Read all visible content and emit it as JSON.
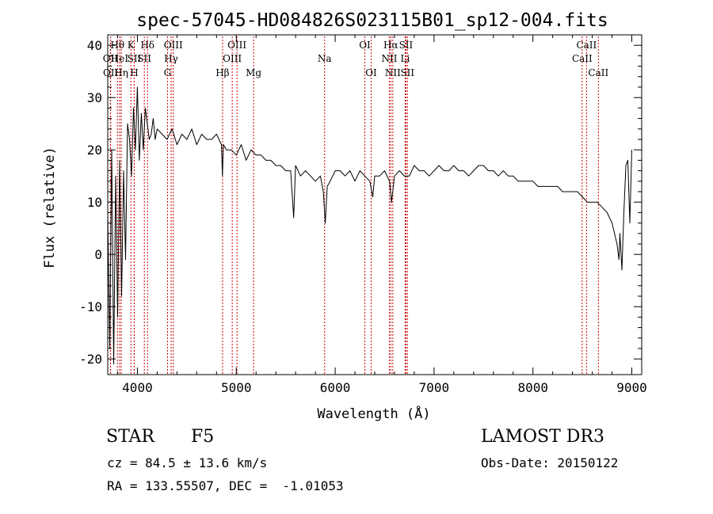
{
  "chart_data": {
    "type": "line",
    "title": "spec-57045-HD084826S023115B01_sp12-004.fits",
    "xlabel": "Wavelength (Å)",
    "ylabel": "Flux (relative)",
    "xlim": [
      3700,
      9100
    ],
    "ylim": [
      -23,
      42
    ],
    "x_ticks": [
      4000,
      5000,
      6000,
      7000,
      8000,
      9000
    ],
    "y_ticks": [
      -20,
      -10,
      0,
      10,
      20,
      30,
      40
    ],
    "grid": false,
    "line_color": "#000000",
    "marker_color": "#cc0000",
    "series": [
      {
        "name": "flux",
        "x": [
          3700,
          3720,
          3740,
          3760,
          3780,
          3800,
          3820,
          3840,
          3860,
          3880,
          3900,
          3920,
          3940,
          3960,
          3980,
          4000,
          4020,
          4040,
          4060,
          4080,
          4100,
          4120,
          4140,
          4160,
          4180,
          4200,
          4250,
          4300,
          4350,
          4400,
          4450,
          4500,
          4550,
          4600,
          4650,
          4700,
          4750,
          4800,
          4850,
          4860,
          4870,
          4900,
          4950,
          5000,
          5050,
          5100,
          5150,
          5200,
          5250,
          5300,
          5350,
          5400,
          5450,
          5500,
          5550,
          5580,
          5600,
          5650,
          5700,
          5750,
          5800,
          5850,
          5880,
          5900,
          5920,
          5950,
          6000,
          6050,
          6100,
          6150,
          6200,
          6250,
          6300,
          6350,
          6380,
          6400,
          6450,
          6500,
          6550,
          6570,
          6600,
          6650,
          6700,
          6750,
          6800,
          6850,
          6900,
          6950,
          7000,
          7050,
          7100,
          7150,
          7200,
          7250,
          7300,
          7350,
          7400,
          7450,
          7500,
          7550,
          7600,
          7650,
          7700,
          7750,
          7800,
          7850,
          7900,
          7950,
          8000,
          8050,
          8100,
          8150,
          8200,
          8250,
          8300,
          8350,
          8400,
          8450,
          8500,
          8550,
          8600,
          8650,
          8700,
          8750,
          8800,
          8850,
          8870,
          8880,
          8900,
          8920,
          8940,
          8960,
          8980,
          9000
        ],
        "y": [
          8,
          -18,
          20,
          -21,
          15,
          -12,
          18,
          -8,
          16,
          -1,
          25,
          22,
          15,
          28,
          20,
          32,
          18,
          27,
          20,
          28,
          25,
          22,
          23,
          26,
          22,
          24,
          23,
          22,
          24,
          21,
          23,
          22,
          24,
          21,
          23,
          22,
          22,
          23,
          21,
          15,
          21,
          20,
          20,
          19,
          21,
          18,
          20,
          19,
          19,
          18,
          18,
          17,
          17,
          16,
          16,
          7,
          17,
          15,
          16,
          15,
          14,
          15,
          12,
          6,
          13,
          14,
          16,
          16,
          15,
          16,
          14,
          16,
          15,
          14,
          11,
          15,
          15,
          16,
          14,
          10,
          15,
          16,
          15,
          15,
          17,
          16,
          16,
          15,
          16,
          17,
          16,
          16,
          17,
          16,
          16,
          15,
          16,
          17,
          17,
          16,
          16,
          15,
          16,
          15,
          15,
          14,
          14,
          14,
          14,
          13,
          13,
          13,
          13,
          13,
          12,
          12,
          12,
          12,
          11,
          10,
          10,
          10,
          9,
          8,
          6,
          2,
          -1,
          4,
          -3,
          8,
          17,
          18,
          6,
          20
        ]
      }
    ],
    "annotations": [
      {
        "label": "OII",
        "x": 3727,
        "row": 2
      },
      {
        "label": "OII",
        "x": 3729,
        "row": 3
      },
      {
        "label": "Hθ",
        "x": 3798,
        "row": 1
      },
      {
        "label": "HeI",
        "x": 3820,
        "row": 2
      },
      {
        "label": "Hη",
        "x": 3836,
        "row": 3
      },
      {
        "label": "K",
        "x": 3934,
        "row": 1
      },
      {
        "label": "SII",
        "x": 3968,
        "row": 2
      },
      {
        "label": "H",
        "x": 3968,
        "row": 3
      },
      {
        "label": "Hδ",
        "x": 4102,
        "row": 1
      },
      {
        "label": "SII",
        "x": 4070,
        "row": 2
      },
      {
        "label": "OIII",
        "x": 4363,
        "row": 1
      },
      {
        "label": "Hγ",
        "x": 4341,
        "row": 2
      },
      {
        "label": "G",
        "x": 4305,
        "row": 3
      },
      {
        "label": "Hβ",
        "x": 4861,
        "row": 3
      },
      {
        "label": "OIII",
        "x": 5007,
        "row": 1
      },
      {
        "label": "OIII",
        "x": 4959,
        "row": 2
      },
      {
        "label": "Mg",
        "x": 5175,
        "row": 3
      },
      {
        "label": "Na",
        "x": 5893,
        "row": 2
      },
      {
        "label": "OI",
        "x": 6300,
        "row": 1
      },
      {
        "label": "OI",
        "x": 6364,
        "row": 3
      },
      {
        "label": "Hα",
        "x": 6563,
        "row": 1
      },
      {
        "label": "NII",
        "x": 6548,
        "row": 2
      },
      {
        "label": "NII",
        "x": 6583,
        "row": 3
      },
      {
        "label": "SII",
        "x": 6716,
        "row": 1
      },
      {
        "label": "Li",
        "x": 6708,
        "row": 2
      },
      {
        "label": "SII",
        "x": 6731,
        "row": 3
      },
      {
        "label": "CaII",
        "x": 8542,
        "row": 1
      },
      {
        "label": "CaII",
        "x": 8498,
        "row": 2
      },
      {
        "label": "CaII",
        "x": 8662,
        "row": 3
      }
    ]
  },
  "info": {
    "object_class": "STAR",
    "subclass": "F5",
    "survey": "LAMOST DR3",
    "cz": "cz = 84.5 ± 13.6 km/s",
    "obs_date": "Obs-Date: 20150122",
    "coords": "RA = 133.55507, DEC =  -1.01053"
  }
}
